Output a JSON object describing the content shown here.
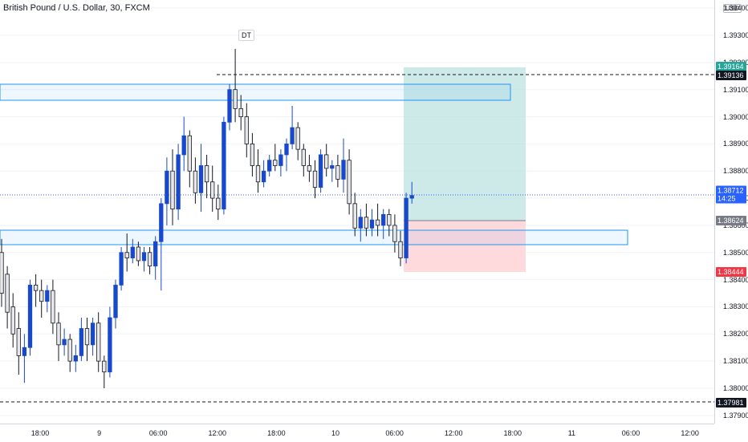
{
  "header": {
    "symbol_title": "British Pound / U.S. Dollar, 30, FXCM"
  },
  "price_axis": {
    "currency": "USD",
    "ticks": [
      "1.39400",
      "1.39300",
      "1.39200",
      "1.39100",
      "1.39000",
      "1.38900",
      "1.38800",
      "1.38700",
      "1.38600",
      "1.38500",
      "1.38400",
      "1.38300",
      "1.38200",
      "1.38100",
      "1.38000",
      "1.37900"
    ],
    "labels": {
      "target": {
        "value": "1.39164",
        "color": "#26a69a"
      },
      "dashed_high": {
        "value": "1.39136",
        "color": "#131722"
      },
      "current": {
        "value": "1.38712",
        "sub": "14:25",
        "color": "#2962ff"
      },
      "entry": {
        "value": "1.38624",
        "color": "#787b86"
      },
      "stop": {
        "value": "1.38444",
        "color": "#f23645"
      },
      "dashed_low": {
        "value": "1.37981",
        "color": "#131722"
      }
    }
  },
  "time_axis": {
    "labels": [
      "18:00",
      "9",
      "06:00",
      "12:00",
      "18:00",
      "10",
      "06:00",
      "12:00",
      "18:00",
      "11",
      "06:00",
      "12:00"
    ]
  },
  "annotations": {
    "marker": "DT"
  },
  "colors": {
    "up": "#1848cc",
    "down": "#e8e8ea",
    "down_border": "#131722",
    "zone": "#2196f3",
    "profit": "#b2dfdb",
    "loss": "#ffcdd2"
  },
  "chart_data": {
    "type": "candlestick",
    "title": "British Pound / U.S. Dollar, 30, FXCM",
    "ylim": [
      1.3787,
      1.3943
    ],
    "candles": [
      [
        1.385,
        1.3855,
        1.383,
        1.3835
      ],
      [
        1.3842,
        1.3845,
        1.3822,
        1.3828
      ],
      [
        1.383,
        1.3835,
        1.3815,
        1.382
      ],
      [
        1.3822,
        1.3828,
        1.3805,
        1.3812
      ],
      [
        1.3812,
        1.382,
        1.3802,
        1.3815
      ],
      [
        1.3815,
        1.384,
        1.3812,
        1.3838
      ],
      [
        1.3838,
        1.3842,
        1.383,
        1.3836
      ],
      [
        1.3836,
        1.384,
        1.3826,
        1.3832
      ],
      [
        1.3832,
        1.3838,
        1.3828,
        1.3836
      ],
      [
        1.3836,
        1.384,
        1.382,
        1.3824
      ],
      [
        1.3824,
        1.3828,
        1.381,
        1.3816
      ],
      [
        1.3816,
        1.3822,
        1.3812,
        1.3818
      ],
      [
        1.3818,
        1.382,
        1.3806,
        1.381
      ],
      [
        1.381,
        1.3816,
        1.3806,
        1.3812
      ],
      [
        1.3812,
        1.3826,
        1.381,
        1.3822
      ],
      [
        1.3822,
        1.3826,
        1.381,
        1.3816
      ],
      [
        1.3816,
        1.3826,
        1.3812,
        1.3824
      ],
      [
        1.3824,
        1.3828,
        1.3806,
        1.381
      ],
      [
        1.381,
        1.3812,
        1.38,
        1.3806
      ],
      [
        1.3806,
        1.383,
        1.3804,
        1.3826
      ],
      [
        1.3826,
        1.384,
        1.3822,
        1.3838
      ],
      [
        1.3838,
        1.3852,
        1.3836,
        1.385
      ],
      [
        1.385,
        1.3857,
        1.3843,
        1.3848
      ],
      [
        1.3848,
        1.3855,
        1.3846,
        1.3852
      ],
      [
        1.3852,
        1.3854,
        1.3845,
        1.3847
      ],
      [
        1.3847,
        1.3852,
        1.3843,
        1.385
      ],
      [
        1.385,
        1.3852,
        1.3842,
        1.3845
      ],
      [
        1.3845,
        1.3856,
        1.384,
        1.3854
      ],
      [
        1.3854,
        1.387,
        1.3836,
        1.3868
      ],
      [
        1.3868,
        1.3885,
        1.386,
        1.388
      ],
      [
        1.388,
        1.3888,
        1.386,
        1.3866
      ],
      [
        1.3866,
        1.389,
        1.3862,
        1.3886
      ],
      [
        1.3886,
        1.39,
        1.388,
        1.3893
      ],
      [
        1.3893,
        1.3895,
        1.3874,
        1.388
      ],
      [
        1.388,
        1.3885,
        1.3868,
        1.3872
      ],
      [
        1.3872,
        1.389,
        1.3865,
        1.3882
      ],
      [
        1.3882,
        1.3886,
        1.387,
        1.3876
      ],
      [
        1.3876,
        1.3882,
        1.3865,
        1.387
      ],
      [
        1.387,
        1.3875,
        1.3862,
        1.3866
      ],
      [
        1.3866,
        1.39,
        1.3864,
        1.3898
      ],
      [
        1.3898,
        1.3912,
        1.3895,
        1.391
      ],
      [
        1.391,
        1.3925,
        1.3898,
        1.3903
      ],
      [
        1.3903,
        1.3908,
        1.3895,
        1.39
      ],
      [
        1.39,
        1.3905,
        1.3885,
        1.389
      ],
      [
        1.389,
        1.3894,
        1.3878,
        1.3882
      ],
      [
        1.3882,
        1.3888,
        1.3872,
        1.3876
      ],
      [
        1.3876,
        1.3884,
        1.3874,
        1.388
      ],
      [
        1.388,
        1.3886,
        1.3878,
        1.3884
      ],
      [
        1.3884,
        1.389,
        1.388,
        1.3882
      ],
      [
        1.3882,
        1.3888,
        1.3878,
        1.3886
      ],
      [
        1.3886,
        1.3892,
        1.388,
        1.389
      ],
      [
        1.389,
        1.3904,
        1.3888,
        1.3896
      ],
      [
        1.3896,
        1.3898,
        1.3884,
        1.3888
      ],
      [
        1.3888,
        1.389,
        1.3878,
        1.3882
      ],
      [
        1.3882,
        1.3886,
        1.3876,
        1.388
      ],
      [
        1.388,
        1.3884,
        1.387,
        1.3874
      ],
      [
        1.3874,
        1.3888,
        1.3872,
        1.3886
      ],
      [
        1.3886,
        1.389,
        1.3878,
        1.3881
      ],
      [
        1.3881,
        1.3884,
        1.3876,
        1.3882
      ],
      [
        1.3882,
        1.3886,
        1.3874,
        1.3877
      ],
      [
        1.3877,
        1.3892,
        1.3872,
        1.3884
      ],
      [
        1.3884,
        1.3888,
        1.3864,
        1.3868
      ],
      [
        1.3868,
        1.3872,
        1.3856,
        1.3859
      ],
      [
        1.3859,
        1.3866,
        1.3854,
        1.3863
      ],
      [
        1.3863,
        1.3868,
        1.3856,
        1.3859
      ],
      [
        1.3859,
        1.3866,
        1.3856,
        1.3862
      ],
      [
        1.3862,
        1.3868,
        1.3856,
        1.386
      ],
      [
        1.386,
        1.3866,
        1.3855,
        1.3864
      ],
      [
        1.3864,
        1.3866,
        1.3856,
        1.386
      ],
      [
        1.386,
        1.3864,
        1.385,
        1.3854
      ],
      [
        1.3854,
        1.3858,
        1.3845,
        1.3848
      ],
      [
        1.3848,
        1.3872,
        1.3846,
        1.387
      ],
      [
        1.387,
        1.3876,
        1.3868,
        1.3871
      ]
    ]
  }
}
